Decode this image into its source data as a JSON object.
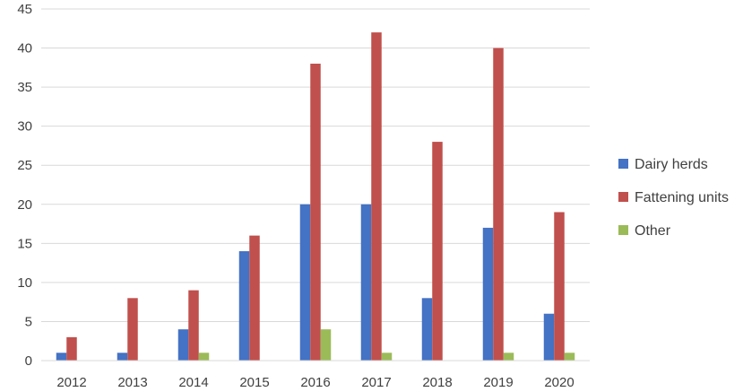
{
  "chart_data": {
    "type": "bar",
    "categories": [
      "2012",
      "2013",
      "2014",
      "2015",
      "2016",
      "2017",
      "2018",
      "2019",
      "2020"
    ],
    "series": [
      {
        "name": "Dairy herds",
        "color": "#4472C4",
        "values": [
          1,
          1,
          4,
          14,
          20,
          20,
          8,
          17,
          6
        ]
      },
      {
        "name": "Fattening units",
        "color": "#C0504D",
        "values": [
          3,
          8,
          9,
          16,
          38,
          42,
          28,
          40,
          19
        ]
      },
      {
        "name": "Other",
        "color": "#9BBB59",
        "values": [
          0,
          0,
          1,
          0,
          4,
          1,
          0,
          1,
          1
        ]
      }
    ],
    "ylim": [
      0,
      45
    ],
    "yticks": [
      0,
      5,
      10,
      15,
      20,
      25,
      30,
      35,
      40,
      45
    ],
    "grid": true,
    "legend": "right",
    "title": "",
    "xlabel": "",
    "ylabel": ""
  }
}
